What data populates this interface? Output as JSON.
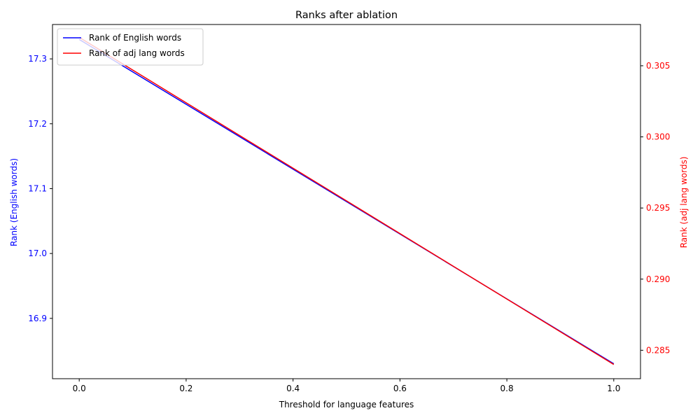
{
  "chart_data": {
    "type": "line",
    "title": "Ranks after ablation",
    "xlabel": "Threshold for language features",
    "ylabel_left": "Rank (English words)",
    "ylabel_right": "Rank (adj lang words)",
    "x": [
      0.0,
      1.0
    ],
    "x_ticks": [
      0.0,
      0.2,
      0.4,
      0.6,
      0.8,
      1.0
    ],
    "x_tick_labels": [
      "0.0",
      "0.2",
      "0.4",
      "0.6",
      "0.8",
      "1.0"
    ],
    "xlim": [
      -0.05,
      1.05
    ],
    "y_left_ticks": [
      16.9,
      17.0,
      17.1,
      17.2,
      17.3
    ],
    "y_left_tick_labels": [
      "16.9",
      "17.0",
      "17.1",
      "17.2",
      "17.3"
    ],
    "ylim_left": [
      16.807,
      17.353
    ],
    "y_right_ticks": [
      0.285,
      0.29,
      0.295,
      0.3,
      0.305
    ],
    "y_right_tick_labels": [
      "0.285",
      "0.290",
      "0.295",
      "0.300",
      "0.305"
    ],
    "ylim_right": [
      0.283,
      0.3079
    ],
    "series": [
      {
        "name": "Rank of English words",
        "axis": "left",
        "color": "#0000ff",
        "values": [
          17.33,
          16.83
        ]
      },
      {
        "name": "Rank of adj lang words",
        "axis": "right",
        "color": "#ff0000",
        "values": [
          0.307,
          0.284
        ]
      }
    ],
    "legend_position": "upper-left",
    "grid": false,
    "left_axis_color": "#0000ff",
    "right_axis_color": "#ff0000"
  }
}
